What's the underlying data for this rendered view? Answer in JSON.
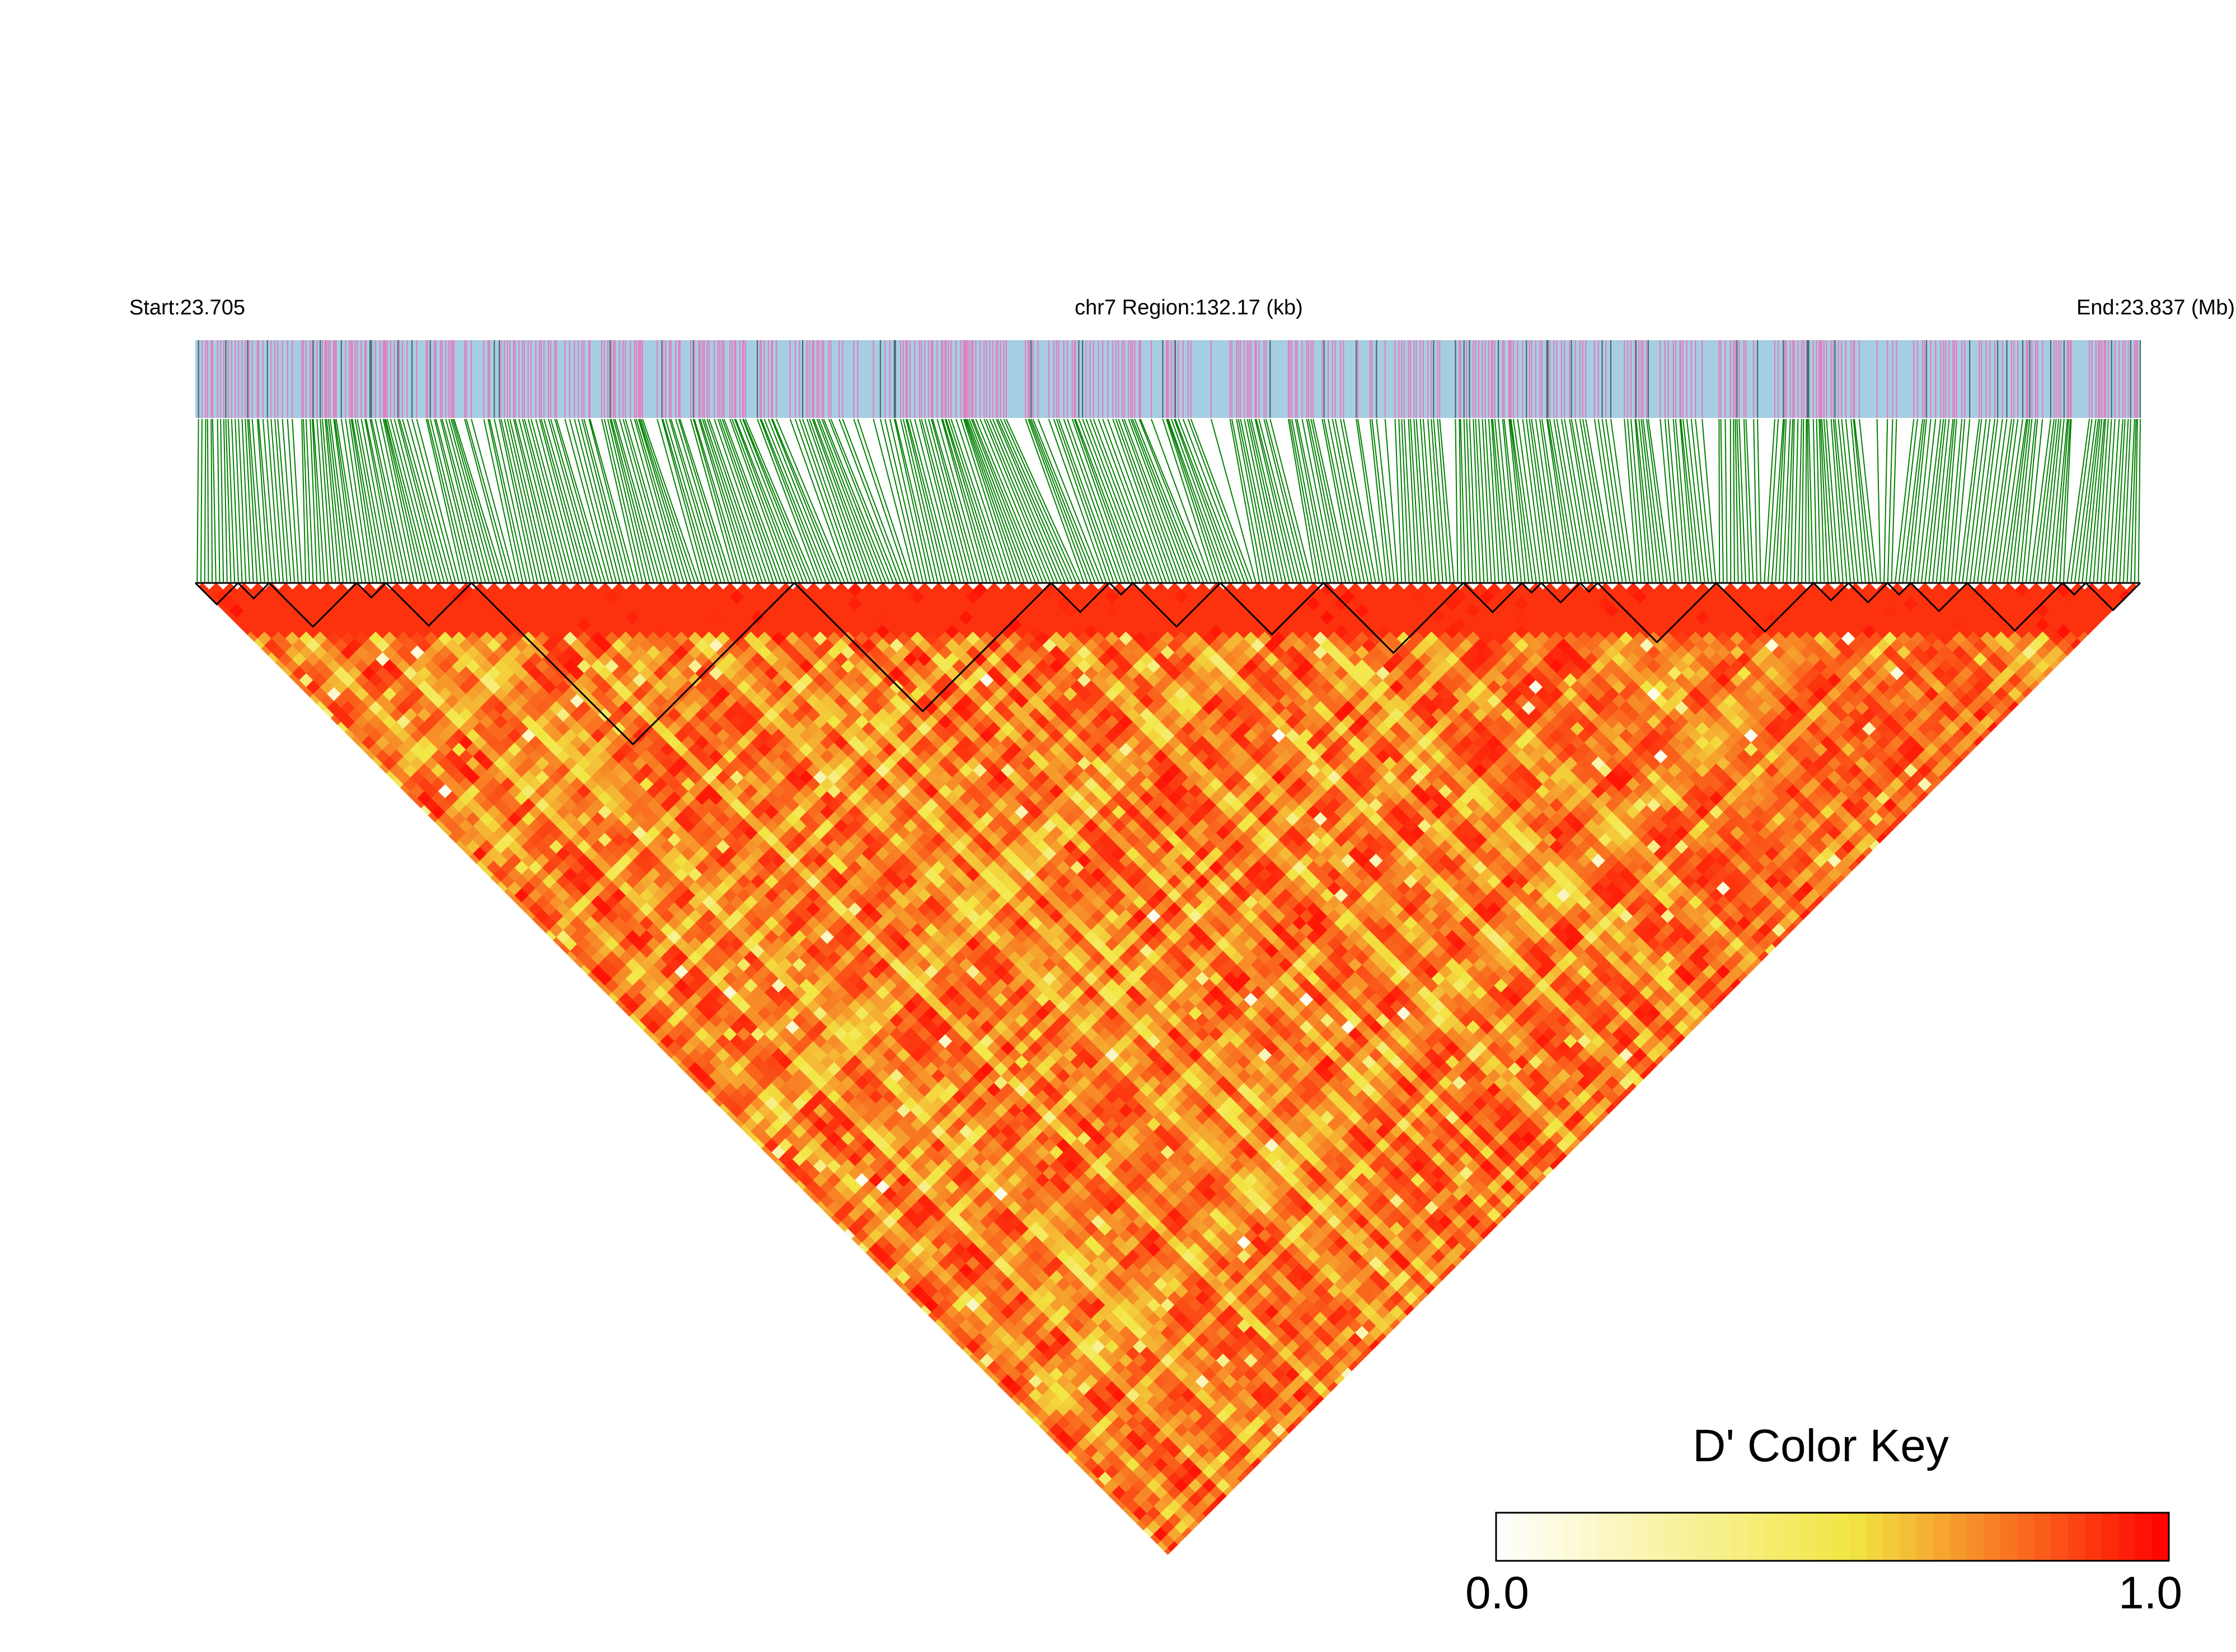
{
  "chart_data": {
    "type": "heatmap",
    "subtype": "linkage-disequilibrium-triangle",
    "header": {
      "start_label": "Start:23.705",
      "region_label": "chr7 Region:132.17 (kb)",
      "end_label": "End:23.837 (Mb)"
    },
    "region": {
      "chromosome": "chr7",
      "start_mb": 23.705,
      "end_mb": 23.837,
      "length_kb": 132.17
    },
    "metric": "D'",
    "color_key": {
      "title": "D' Color Key",
      "min_label": "0.0",
      "max_label": "1.0",
      "range": [
        0.0,
        1.0
      ],
      "colors": [
        "#ffffff",
        "#f2e642",
        "#ff0000"
      ]
    },
    "track_colors": {
      "snp_bar_background": "#a6cee3",
      "snp_bar_marker": "#e07fc0",
      "mapping_lines": "#008000",
      "block_outline": "#000000"
    },
    "ld_blocks_fraction": [
      [
        0.0,
        0.022
      ],
      [
        0.022,
        0.038
      ],
      [
        0.038,
        0.083
      ],
      [
        0.083,
        0.098
      ],
      [
        0.098,
        0.142
      ],
      [
        0.142,
        0.308
      ],
      [
        0.308,
        0.44
      ],
      [
        0.44,
        0.47
      ],
      [
        0.47,
        0.482
      ],
      [
        0.482,
        0.527
      ],
      [
        0.527,
        0.58
      ],
      [
        0.58,
        0.652
      ],
      [
        0.652,
        0.682
      ],
      [
        0.682,
        0.692
      ],
      [
        0.692,
        0.712
      ],
      [
        0.712,
        0.721
      ],
      [
        0.721,
        0.782
      ],
      [
        0.782,
        0.832
      ],
      [
        0.832,
        0.85
      ],
      [
        0.85,
        0.87
      ],
      [
        0.87,
        0.882
      ],
      [
        0.882,
        0.911
      ],
      [
        0.911,
        0.96
      ],
      [
        0.96,
        0.972
      ],
      [
        0.972,
        1.0
      ]
    ]
  }
}
